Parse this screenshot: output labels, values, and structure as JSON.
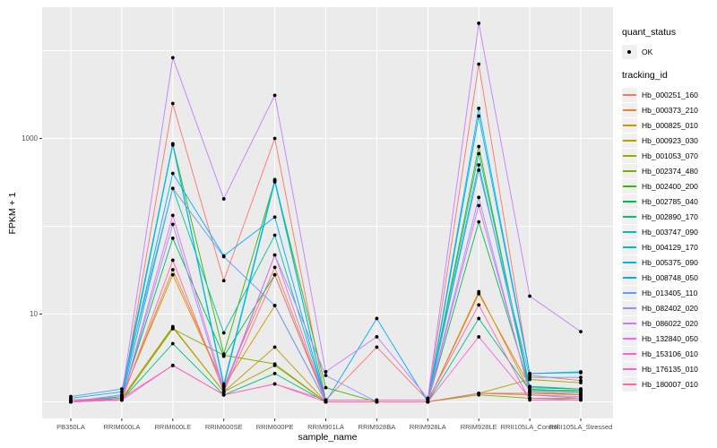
{
  "figure": {
    "background": "#FFFFFF"
  },
  "chart_data": {
    "type": "line",
    "title": "",
    "xlabel": "sample_name",
    "ylabel": "FPKM + 1",
    "y_scale": "log10",
    "y_axis_tick_labels": [
      "10",
      "1000"
    ],
    "y_axis_tick_values": [
      10,
      1000
    ],
    "y_gridline_values": [
      1,
      10,
      100,
      1000,
      10000
    ],
    "ylim": [
      0.9,
      25000
    ],
    "grid": "on",
    "panel_background": "#EBEBEB",
    "gridline_color": "#FFFFFF",
    "axis_text_color": "#4D4D4D",
    "point": {
      "color": "#000000",
      "shape": "filled-circle"
    },
    "legend": {
      "position": "right",
      "quant_status_title": "quant_status",
      "quant_ok_label": "OK",
      "tracking_id_title": "tracking_id"
    },
    "x_categories": [
      "PB350LA",
      "RRIM600LA",
      "RRIM600LE",
      "RRIM600SE",
      "RRIM600PE",
      "RRIM901LA",
      "RRIM928BA",
      "RRIM928LA",
      "RRIM928LE",
      "RRII105LA_Control",
      "RRII105LA_Stressed"
    ],
    "series": [
      {
        "name": "Hb_000251_160",
        "color": "#F8766D",
        "values": [
          1.05,
          1.1,
          2500,
          24,
          1000,
          1.05,
          4.2,
          1.05,
          7000,
          2.0,
          1.75
        ]
      },
      {
        "name": "Hb_000373_210",
        "color": "#EA8331",
        "values": [
          1.0,
          1.1,
          32,
          1.5,
          34,
          1.0,
          1.0,
          1.0,
          18,
          1.3,
          1.2
        ]
      },
      {
        "name": "Hb_000825_010",
        "color": "#D89000",
        "values": [
          1.0,
          1.15,
          28,
          1.5,
          12.5,
          1.0,
          1.0,
          1.0,
          17,
          1.5,
          1.4
        ]
      },
      {
        "name": "Hb_000923_030",
        "color": "#C09B00",
        "values": [
          1.0,
          1.1,
          7.2,
          1.3,
          4.2,
          1.0,
          1.0,
          1.0,
          1.25,
          1.25,
          1.2
        ]
      },
      {
        "name": "Hb_001053_070",
        "color": "#A3A500",
        "values": [
          1.0,
          1.05,
          7.0,
          1.3,
          2.6,
          1.0,
          1.0,
          1.0,
          1.25,
          1.8,
          1.65
        ]
      },
      {
        "name": "Hb_002374_480",
        "color": "#7CAE00",
        "values": [
          1.0,
          1.05,
          6.8,
          3.4,
          2.7,
          1.0,
          1.0,
          1.0,
          1.2,
          1.1,
          1.1
        ]
      },
      {
        "name": "Hb_002400_200",
        "color": "#39B600",
        "values": [
          1.0,
          1.2,
          860,
          3.5,
          330,
          1.45,
          1.0,
          1.0,
          810,
          1.35,
          1.35
        ]
      },
      {
        "name": "Hb_002785_040",
        "color": "#00BB4E",
        "values": [
          1.0,
          1.1,
          73,
          3.3,
          28,
          1.0,
          1.0,
          1.0,
          112,
          1.45,
          1.4
        ]
      },
      {
        "name": "Hb_002890_170",
        "color": "#00BF7D",
        "values": [
          1.0,
          1.05,
          4.6,
          1.2,
          2.1,
          1.0,
          1.0,
          1.0,
          8.9,
          1.35,
          1.3
        ]
      },
      {
        "name": "Hb_003747_090",
        "color": "#00C1A3",
        "values": [
          1.0,
          1.1,
          270,
          6.1,
          79,
          1.0,
          1.0,
          1.0,
          500,
          1.4,
          1.3
        ]
      },
      {
        "name": "Hb_004129_170",
        "color": "#00BFC4",
        "values": [
          1.0,
          1.15,
          840,
          1.5,
          320,
          1.0,
          1.0,
          1.0,
          670,
          1.5,
          1.4
        ]
      },
      {
        "name": "Hb_005375_090",
        "color": "#00B8E7",
        "values": [
          1.1,
          1.3,
          870,
          1.6,
          340,
          1.0,
          1.0,
          1.0,
          2200,
          2.1,
          2.2
        ]
      },
      {
        "name": "Hb_008748_050",
        "color": "#00ACFC",
        "values": [
          1.0,
          1.2,
          400,
          46,
          127,
          1.0,
          8.9,
          1.0,
          1800,
          2.1,
          2.15
        ]
      },
      {
        "name": "Hb_013405_110",
        "color": "#619CFF",
        "values": [
          1.15,
          1.4,
          270,
          45,
          12.5,
          1.0,
          1.0,
          1.0,
          435,
          1.9,
          1.9
        ]
      },
      {
        "name": "Hb_082402_020",
        "color": "#9590FF",
        "values": [
          1.0,
          1.05,
          105,
          1.3,
          47,
          2.0,
          1.0,
          1.0,
          213,
          1.2,
          1.1
        ]
      },
      {
        "name": "Hb_086022_020",
        "color": "#C77CFF",
        "values": [
          1.0,
          1.2,
          8300,
          205,
          3100,
          2.2,
          5.5,
          1.1,
          20500,
          16,
          6.3
        ]
      },
      {
        "name": "Hb_132840_050",
        "color": "#E76BF3",
        "values": [
          1.0,
          1.05,
          133,
          1.4,
          47,
          1.0,
          1.0,
          1.0,
          172,
          1.3,
          1.25
        ]
      },
      {
        "name": "Hb_153106_010",
        "color": "#FA62DB",
        "values": [
          1.0,
          1.05,
          2.6,
          1.2,
          1.6,
          1.0,
          1.0,
          1.0,
          5.5,
          1.1,
          1.05
        ]
      },
      {
        "name": "Hb_176135_010",
        "color": "#FF62BC",
        "values": [
          1.05,
          1.1,
          2.6,
          1.2,
          1.6,
          1.05,
          1.05,
          1.05,
          12.7,
          1.05,
          1.05
        ]
      },
      {
        "name": "Hb_180007_010",
        "color": "#FF6A98",
        "values": [
          1.05,
          1.05,
          41,
          1.3,
          28,
          1.0,
          1.0,
          1.0,
          1.25,
          1.2,
          1.15
        ]
      }
    ]
  }
}
